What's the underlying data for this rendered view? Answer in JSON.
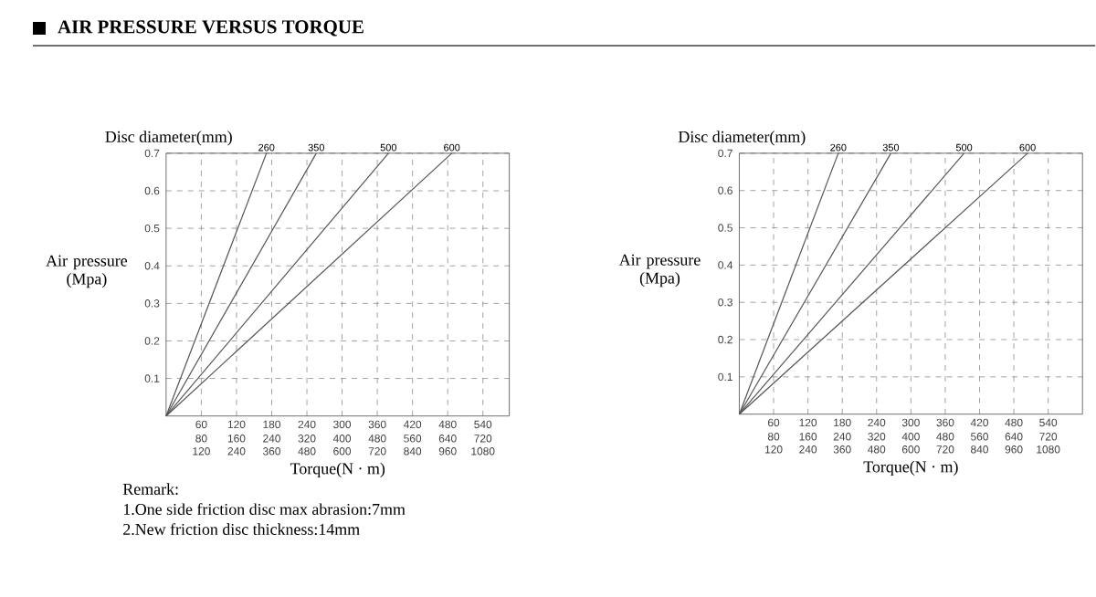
{
  "chart_data": [
    {
      "type": "line",
      "title": "AIR PRESSURE VERSUS TORQUE",
      "xlabel": "Torque(N · m)",
      "ylabel": "Air pressure (Mpa)",
      "legend_title": "Disc diameter(mm)",
      "xlim": [
        0,
        585
      ],
      "ylim": [
        0,
        0.7
      ],
      "xticks": [
        60,
        120,
        180,
        240,
        300,
        360,
        420,
        480,
        540
      ],
      "x2lim": [
        0,
        780
      ],
      "x2ticks": [
        80,
        160,
        240,
        320,
        400,
        480,
        560,
        640,
        720
      ],
      "yticks": [
        0.1,
        0.2,
        0.3,
        0.4,
        0.5,
        0.6,
        0.7
      ],
      "grid": true,
      "series": [
        {
          "name": "260",
          "color": "#555555",
          "x": [
            0,
            171
          ],
          "values": [
            0,
            0.7
          ]
        },
        {
          "name": "350",
          "color": "#555555",
          "x": [
            0,
            256
          ],
          "values": [
            0,
            0.7
          ]
        },
        {
          "name": "500",
          "color": "#555555",
          "x": [
            0,
            379
          ],
          "values": [
            0,
            0.7
          ]
        },
        {
          "name": "600",
          "color": "#555555",
          "x": [
            0,
            487
          ],
          "values": [
            0,
            0.7
          ]
        }
      ],
      "annotations": [
        "120",
        "240",
        "360",
        "480",
        "600",
        "720",
        "840",
        "960",
        "1080",
        "Remark:",
        "1.One side friction disc max abrasion:7mm",
        "2.New friction disc thickness:14mm"
      ]
    },
    {
      "type": "line",
      "xlabel": "Torque(N · m)",
      "ylabel": "Air pressure (Mpa)",
      "legend_title": "Disc diameter(mm)",
      "xlim": [
        0,
        600
      ],
      "ylim": [
        0,
        0.7
      ],
      "xticks": [
        60,
        120,
        180,
        240,
        300,
        360,
        420,
        480,
        540
      ],
      "x2lim": [
        0,
        800
      ],
      "x2ticks": [
        80,
        160,
        240,
        320,
        400,
        480,
        560,
        640,
        720
      ],
      "yticks": [
        0.1,
        0.2,
        0.3,
        0.4,
        0.5,
        0.6,
        0.7
      ],
      "grid": true,
      "series": [
        {
          "name": "260",
          "color": "#555555",
          "x": [
            0,
            173
          ],
          "values": [
            0,
            0.7
          ]
        },
        {
          "name": "350",
          "color": "#555555",
          "x": [
            0,
            265
          ],
          "values": [
            0,
            0.7
          ]
        },
        {
          "name": "500",
          "color": "#555555",
          "x": [
            0,
            393
          ],
          "values": [
            0,
            0.7
          ]
        },
        {
          "name": "600",
          "color": "#555555",
          "x": [
            0,
            504
          ],
          "values": [
            0,
            0.7
          ]
        }
      ],
      "annotations": [
        "120",
        "240",
        "360",
        "480",
        "600",
        "720",
        "840",
        "960",
        "1080"
      ]
    }
  ]
}
